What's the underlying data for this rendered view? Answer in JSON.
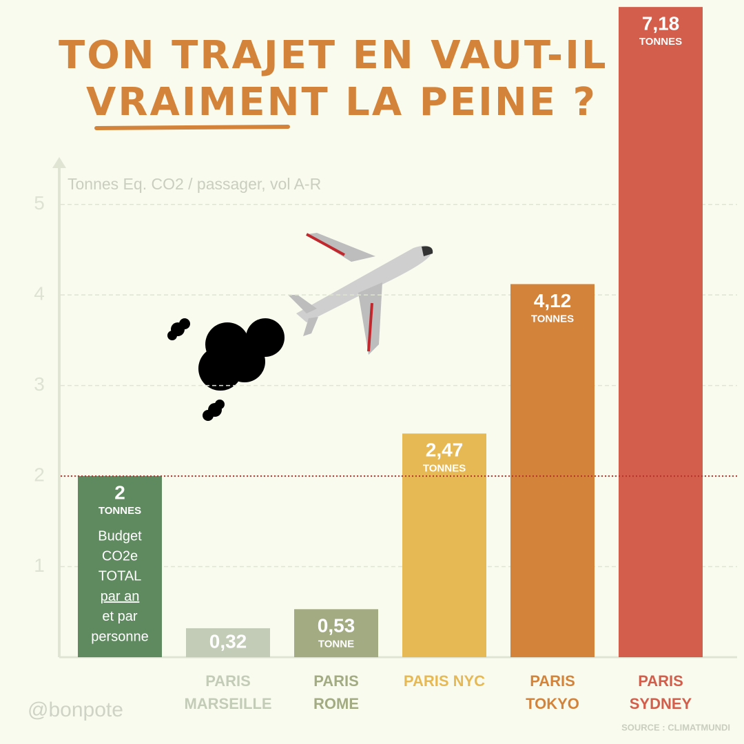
{
  "chart_data": {
    "type": "bar",
    "title": [
      "TON TRAJET EN VAUT-IL",
      "VRAIMENT LA PEINE ?"
    ],
    "y_label": "Tonnes Eq. CO2 / passager, vol A-R",
    "categories": [
      null,
      "PARIS MARSEILLE",
      "PARIS ROME",
      "PARIS NYC",
      "PARIS TOKYO",
      "PARIS SYDNEY"
    ],
    "values": [
      2,
      0.32,
      0.53,
      2.47,
      4.12,
      7.18
    ],
    "value_labels": [
      "2",
      "0,32",
      "0,53",
      "2,47",
      "4,12",
      "7,18"
    ],
    "unit_labels": [
      "TONNES",
      null,
      "TONNE",
      "TONNES",
      "TONNES",
      "TONNES"
    ],
    "colors": [
      "#5f8a5f",
      "#c3ccb6",
      "#a3ab82",
      "#e6b955",
      "#d4843a",
      "#d25e4b"
    ],
    "budget_note": [
      "Budget",
      "CO2e",
      "TOTAL",
      "par an",
      "et par",
      "personne"
    ],
    "reference_line": 2,
    "ylim": [
      0,
      5.5
    ],
    "yticks": [
      1,
      2,
      3,
      4,
      5
    ],
    "grid": true,
    "handle": "@bonpote",
    "source": "SOURCE : CLIMATMUNDI"
  }
}
